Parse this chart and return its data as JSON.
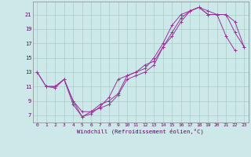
{
  "title": "",
  "xlabel": "Windchill (Refroidissement éolien,°C)",
  "background_color": "#cce8e8",
  "line_color": "#993399",
  "marker_color": "#993399",
  "xlim": [
    -0.5,
    23.5
  ],
  "ylim": [
    6.0,
    22.8
  ],
  "xticks": [
    0,
    1,
    2,
    3,
    4,
    5,
    6,
    7,
    8,
    9,
    10,
    11,
    12,
    13,
    14,
    15,
    16,
    17,
    18,
    19,
    20,
    21,
    22,
    23
  ],
  "yticks": [
    7,
    9,
    11,
    13,
    15,
    17,
    19,
    21
  ],
  "grid_color": "#aacccc",
  "series": [
    {
      "x": [
        0,
        1,
        2,
        3,
        4,
        5,
        6,
        7,
        8,
        9,
        10,
        11,
        12,
        13,
        14,
        15,
        16,
        17,
        18,
        19,
        20,
        21,
        22
      ],
      "y": [
        13,
        11,
        11,
        12,
        8.5,
        6.8,
        7.5,
        8.0,
        8.5,
        9.8,
        12.0,
        12.5,
        13.0,
        14.0,
        16.5,
        18.0,
        20.0,
        21.5,
        22.0,
        21.0,
        21.0,
        18.0,
        16.0
      ]
    },
    {
      "x": [
        0,
        1,
        2,
        3,
        4,
        5,
        6,
        7,
        8,
        9,
        10,
        11,
        12,
        13,
        14,
        15,
        16,
        17,
        18,
        19,
        20,
        21,
        22,
        23
      ],
      "y": [
        13,
        11,
        10.8,
        12,
        9.0,
        6.8,
        7.2,
        8.2,
        9.5,
        12.0,
        12.5,
        13.0,
        13.5,
        15.0,
        17.0,
        19.5,
        21.0,
        21.5,
        22.0,
        21.0,
        21.0,
        21.0,
        20.0,
        16.5
      ]
    },
    {
      "x": [
        1,
        2,
        3,
        4,
        5,
        6,
        7,
        8,
        9,
        10,
        11,
        12,
        13,
        14,
        15,
        16,
        17,
        18,
        19,
        20,
        21,
        22,
        23
      ],
      "y": [
        11,
        11.0,
        12.0,
        9.0,
        7.5,
        7.5,
        8.5,
        9.0,
        10.0,
        12.5,
        13.0,
        14.0,
        14.5,
        16.5,
        18.5,
        20.5,
        21.5,
        22.0,
        21.5,
        21.0,
        21.0,
        18.5,
        16.5
      ]
    }
  ]
}
